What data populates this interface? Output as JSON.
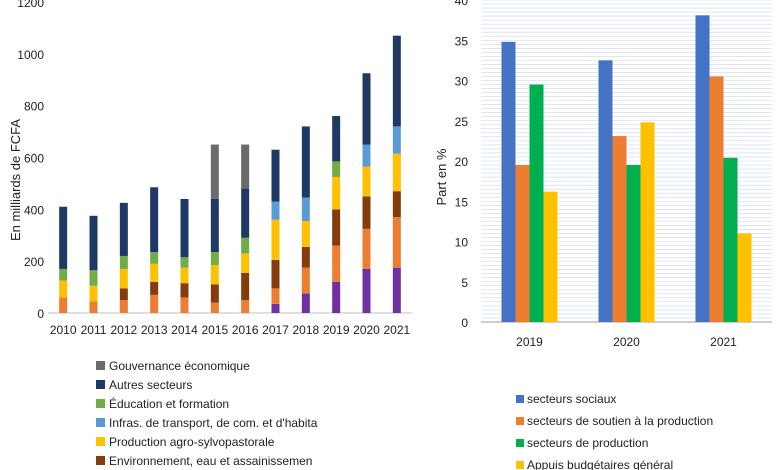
{
  "chart_data": [
    {
      "type": "bar",
      "stacked": true,
      "ylabel": "En milliards de FCFA",
      "ylim": [
        0,
        1200
      ],
      "yticks": [
        "0",
        "200",
        "400",
        "600",
        "800",
        "1000",
        "1200"
      ],
      "categories": [
        "2010",
        "2011",
        "2012",
        "2013",
        "2014",
        "2015",
        "2016",
        "2017",
        "2018",
        "2019",
        "2020",
        "2021"
      ],
      "legend_position": "bottom",
      "grid": false,
      "series": [
        {
          "name": "",
          "color": "#7030a0",
          "values": [
            0,
            0,
            0,
            0,
            0,
            0,
            0,
            35,
            75,
            120,
            170,
            175
          ]
        },
        {
          "name": "",
          "color": "#ed7d31",
          "values": [
            60,
            45,
            50,
            70,
            60,
            40,
            50,
            60,
            100,
            140,
            155,
            195
          ]
        },
        {
          "name": "Environnement, eau et assainissemen",
          "color": "#843c0c",
          "values": [
            0,
            0,
            45,
            50,
            55,
            70,
            105,
            110,
            80,
            140,
            125,
            100
          ]
        },
        {
          "name": "Production agro-sylvopastorale",
          "color": "#ffc000",
          "values": [
            65,
            60,
            75,
            70,
            60,
            75,
            75,
            155,
            100,
            125,
            115,
            145
          ]
        },
        {
          "name": "Infras. de transport, de com. et d'habita",
          "color": "#5b9bd5",
          "values": [
            0,
            0,
            0,
            0,
            0,
            0,
            0,
            70,
            90,
            0,
            85,
            105
          ]
        },
        {
          "name": "Éducation et formation",
          "color": "#70ad47",
          "values": [
            45,
            60,
            50,
            45,
            40,
            50,
            60,
            0,
            0,
            60,
            0,
            0
          ]
        },
        {
          "name": "Autres secteurs",
          "color": "#203864",
          "values": [
            240,
            210,
            205,
            250,
            225,
            205,
            190,
            200,
            275,
            175,
            275,
            350
          ]
        },
        {
          "name": "Gouvernance économique",
          "color": "#6b6b6b",
          "values": [
            0,
            0,
            0,
            0,
            0,
            210,
            170,
            0,
            0,
            0,
            0,
            0
          ]
        }
      ]
    },
    {
      "type": "bar",
      "ylabel": "Part en %",
      "ylim": [
        0,
        40
      ],
      "yticks": [
        "0",
        "5",
        "10",
        "15",
        "20",
        "25",
        "30",
        "35",
        "40"
      ],
      "categories": [
        "2019",
        "2020",
        "2021"
      ],
      "legend_position": "bottom",
      "grid": true,
      "series": [
        {
          "name": "secteurs sociaux",
          "color": "#4472c4",
          "values": [
            34.8,
            32.5,
            38.1
          ]
        },
        {
          "name": "secteurs de soutien à la production",
          "color": "#ed7d31",
          "values": [
            19.5,
            23.1,
            30.5
          ]
        },
        {
          "name": "secteurs de production",
          "color": "#00b050",
          "values": [
            29.5,
            19.5,
            20.4
          ]
        },
        {
          "name": "Appuis budgétaires général",
          "color": "#ffc000",
          "values": [
            16.2,
            24.8,
            11.0
          ]
        }
      ]
    }
  ]
}
